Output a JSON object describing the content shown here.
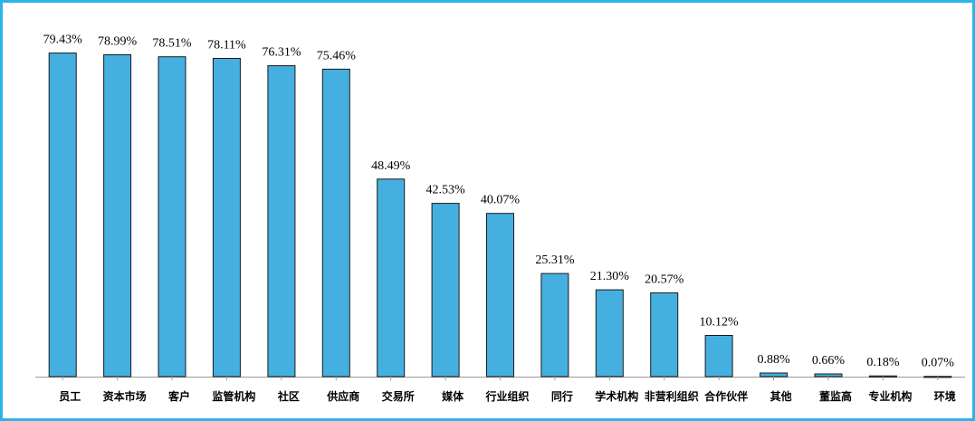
{
  "chart_data": {
    "type": "bar",
    "title": "",
    "xlabel": "",
    "ylabel": "",
    "ylim": [
      0,
      80
    ],
    "grid": false,
    "bar_color": "#45b0e0",
    "bar_stroke": "#1a1a1a",
    "categories": [
      "员工",
      "资本市场",
      "客户",
      "监管机构",
      "社区",
      "供应商",
      "交易所",
      "媒体",
      "行业组织",
      "同行",
      "学术机构",
      "非营利组织",
      "合作伙伴",
      "其他",
      "董监高",
      "专业机构",
      "环境"
    ],
    "values": [
      79.43,
      78.99,
      78.51,
      78.11,
      76.31,
      75.46,
      48.49,
      42.53,
      40.07,
      25.31,
      21.3,
      20.57,
      10.12,
      0.88,
      0.66,
      0.18,
      0.07
    ],
    "value_labels": [
      "79.43%",
      "78.99%",
      "78.51%",
      "78.11%",
      "76.31%",
      "75.46%",
      "48.49%",
      "42.53%",
      "40.07%",
      "25.31%",
      "21.30%",
      "20.57%",
      "10.12%",
      "0.88%",
      "0.66%",
      "0.18%",
      "0.07%"
    ]
  }
}
